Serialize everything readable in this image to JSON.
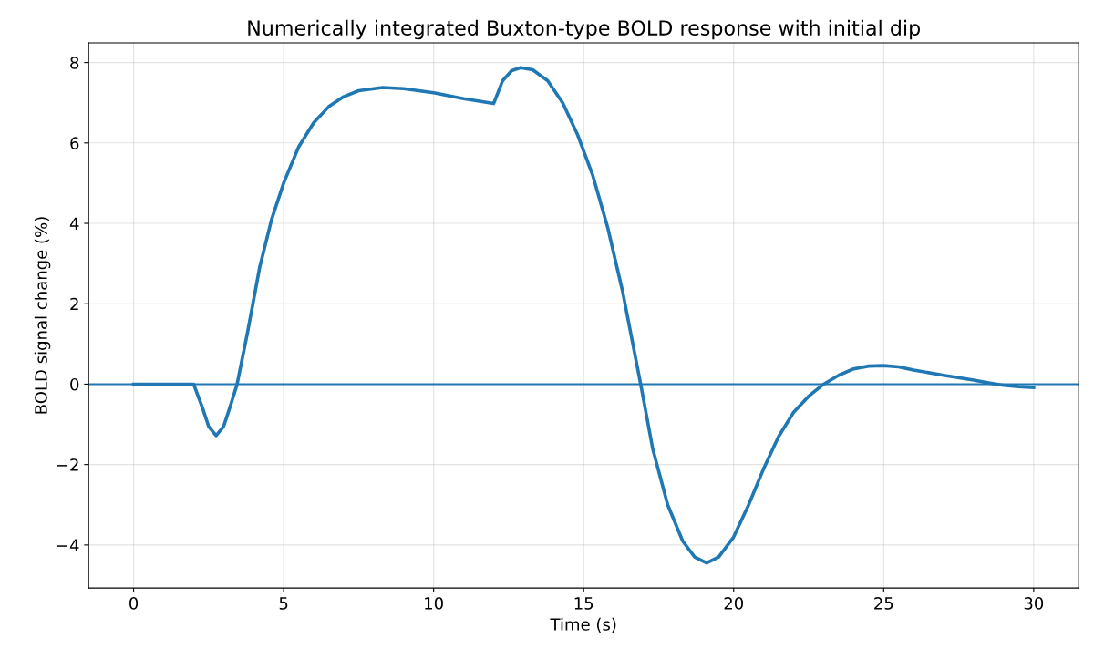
{
  "chart_data": {
    "type": "line",
    "title": "Numerically integrated Buxton-type BOLD response with initial dip",
    "xlabel": "Time (s)",
    "ylabel": "BOLD signal change (%)",
    "x": [
      0,
      1,
      2,
      2.3,
      2.5,
      2.75,
      3.0,
      3.2,
      3.45,
      3.8,
      4.2,
      4.6,
      5.0,
      5.5,
      6,
      6.5,
      7,
      7.5,
      8.3,
      9,
      10,
      11,
      12,
      12.3,
      12.6,
      12.9,
      13.3,
      13.8,
      14.3,
      14.8,
      15.3,
      15.8,
      16.3,
      16.9,
      17.3,
      17.8,
      18.3,
      18.7,
      19.1,
      19.5,
      20,
      20.5,
      21,
      21.5,
      22,
      22.5,
      23,
      23.5,
      24,
      24.5,
      25,
      25.5,
      26,
      27,
      28,
      28.5,
      29,
      29.5,
      30
    ],
    "series": [
      {
        "color": "#1f77b4",
        "values": [
          0,
          0,
          0,
          -0.6,
          -1.05,
          -1.28,
          -1.05,
          -0.6,
          0,
          1.3,
          2.9,
          4.1,
          5.0,
          5.9,
          6.5,
          6.9,
          7.15,
          7.3,
          7.38,
          7.35,
          7.25,
          7.1,
          6.98,
          7.55,
          7.8,
          7.87,
          7.82,
          7.55,
          7.0,
          6.2,
          5.2,
          3.9,
          2.3,
          0,
          -1.6,
          -3.0,
          -3.9,
          -4.3,
          -4.45,
          -4.3,
          -3.8,
          -3.0,
          -2.1,
          -1.3,
          -0.7,
          -0.3,
          0,
          0.22,
          0.38,
          0.45,
          0.46,
          0.43,
          0.35,
          0.22,
          0.1,
          0.03,
          -0.03,
          -0.06,
          -0.08
        ]
      }
    ],
    "ref_lines": [
      {
        "axis": "y",
        "value": 0,
        "color": "#1f77b4"
      }
    ],
    "xlim": [
      -1.5,
      31.5
    ],
    "ylim": [
      -5.07,
      8.49
    ],
    "xticks": [
      0,
      5,
      10,
      15,
      20,
      25,
      30
    ],
    "yticks": [
      {
        "value": -4,
        "label": "−4"
      },
      {
        "value": -2,
        "label": "−2"
      },
      0,
      2,
      4,
      6,
      8
    ],
    "grid": true,
    "line_style": "solid",
    "marker": "none"
  }
}
